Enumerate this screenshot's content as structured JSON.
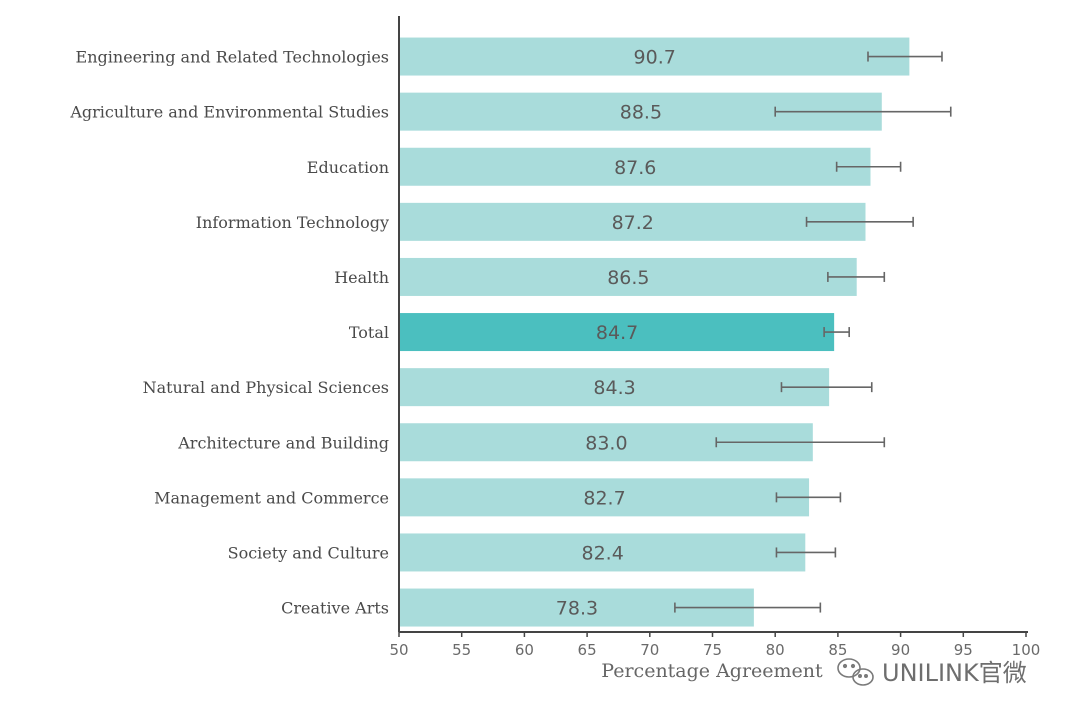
{
  "chart_data": {
    "type": "bar",
    "orientation": "horizontal",
    "categories": [
      "Engineering and Related Technologies",
      "Agriculture and Environmental Studies",
      "Education",
      "Information Technology",
      "Health",
      "Total",
      "Natural and Physical Sciences",
      "Architecture and Building",
      "Management and Commerce",
      "Society and Culture",
      "Creative Arts"
    ],
    "values": [
      90.7,
      88.5,
      87.6,
      87.2,
      86.5,
      84.7,
      84.3,
      83.0,
      82.7,
      82.4,
      78.3
    ],
    "value_labels": [
      "90.7",
      "88.5",
      "87.6",
      "87.2",
      "86.5",
      "84.7",
      "84.3",
      "83.0",
      "82.7",
      "82.4",
      "78.3"
    ],
    "error_low": [
      87.4,
      80.0,
      84.9,
      82.5,
      84.2,
      83.9,
      80.5,
      75.3,
      80.1,
      80.1,
      72.0
    ],
    "error_high": [
      93.3,
      94.0,
      90.0,
      91.0,
      88.7,
      85.9,
      87.7,
      88.7,
      85.2,
      84.8,
      83.6
    ],
    "highlight_category": "Total",
    "xlabel": "Percentage Agreement",
    "ylabel": "",
    "title": "",
    "xlim": [
      50,
      100
    ],
    "xticks": [
      "50",
      "55",
      "60",
      "65",
      "70",
      "75",
      "80",
      "85",
      "90",
      "95",
      "100"
    ],
    "grid": false,
    "legend": "none",
    "colors": {
      "bar": "#a9dcdb",
      "highlight_bar": "#4bbfbf",
      "error_bar": "#666666",
      "axis": "#444444"
    }
  },
  "watermark": {
    "text": "UNILINK官微",
    "icon": "wechat-icon"
  }
}
